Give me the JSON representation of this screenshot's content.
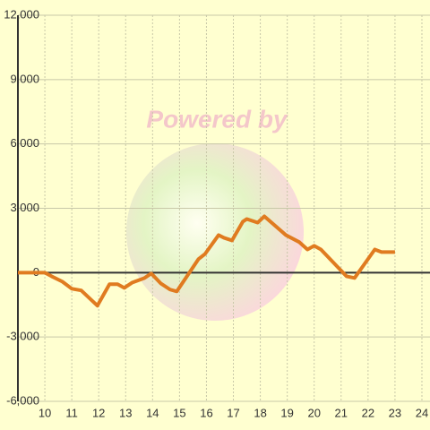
{
  "chart_data": {
    "type": "line",
    "watermark": "Powered by",
    "x": [
      9.0,
      10.0,
      10.25,
      10.65,
      11.0,
      11.35,
      11.95,
      12.4,
      12.7,
      12.95,
      13.25,
      13.7,
      13.95,
      14.3,
      14.65,
      14.9,
      15.7,
      15.95,
      16.45,
      16.65,
      16.95,
      17.35,
      17.5,
      17.9,
      18.15,
      18.95,
      19.45,
      19.75,
      20.0,
      20.25,
      21.2,
      21.5,
      22.25,
      22.5,
      23.0
    ],
    "series": [
      {
        "color": "#e07b20",
        "values": [
          0,
          0,
          -170,
          -420,
          -750,
          -830,
          -1540,
          -540,
          -540,
          -710,
          -460,
          -250,
          -40,
          -500,
          -790,
          -875,
          625,
          875,
          1750,
          1625,
          1500,
          2375,
          2500,
          2330,
          2625,
          1750,
          1420,
          1080,
          1250,
          1080,
          -170,
          -250,
          1080,
          960,
          960
        ]
      }
    ],
    "xlim": [
      9,
      24.3
    ],
    "ylim": [
      -6000,
      12000
    ],
    "xticks": [
      10,
      11,
      12,
      13,
      14,
      15,
      16,
      17,
      18,
      19,
      20,
      21,
      22,
      23,
      24
    ],
    "yticks": [
      {
        "value": -6000,
        "label": "-6,000"
      },
      {
        "value": -3000,
        "label": "-3,000"
      },
      0,
      {
        "value": 3000,
        "label": "3,000"
      },
      {
        "value": 6000,
        "label": "6,000"
      },
      {
        "value": 9000,
        "label": "9,000"
      },
      {
        "value": 12000,
        "label": "12,000"
      }
    ],
    "grid": true
  }
}
